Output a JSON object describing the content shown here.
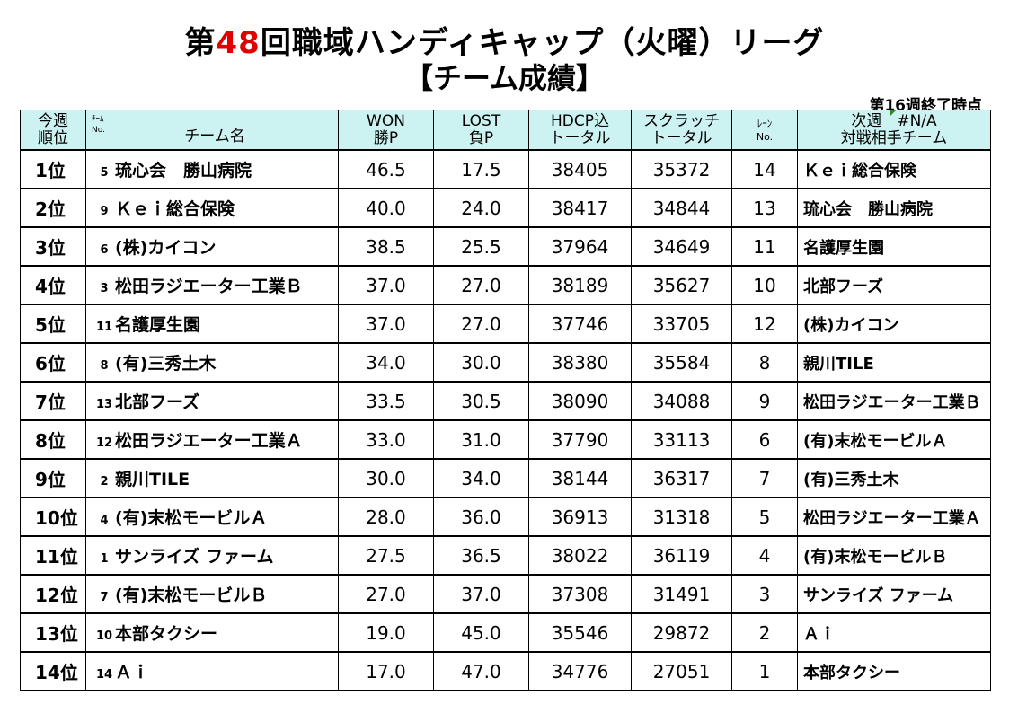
{
  "title": {
    "prefix": "第",
    "number": "48",
    "suffix": "回職域ハンディキャップ（火曜）リーグ"
  },
  "subtitle": "【チーム成績】",
  "as_of": "第16週終了時点",
  "headers": {
    "rank": [
      "今週",
      "順位"
    ],
    "team_no": [
      "ﾁｰﾑ",
      "No."
    ],
    "team_name": "チーム名",
    "won": [
      "WON",
      "勝P"
    ],
    "lost": [
      "LOST",
      "負P"
    ],
    "hdcp": [
      "HDCP込",
      "トータル"
    ],
    "scratch": [
      "スクラッチ",
      "トータル"
    ],
    "lane": [
      "ﾚｰﾝ",
      "No."
    ],
    "next": [
      "次週",
      "#N/A",
      "対戦相手チーム"
    ]
  },
  "rows": [
    {
      "rank": "1位",
      "no": "5",
      "team": "琉心会　勝山病院",
      "won": "46.5",
      "lost": "17.5",
      "hdcp": "38405",
      "scratch": "35372",
      "lane": "14",
      "opponent": "Ｋｅｉ総合保険"
    },
    {
      "rank": "2位",
      "no": "9",
      "team": "Ｋｅｉ総合保険",
      "won": "40.0",
      "lost": "24.0",
      "hdcp": "38417",
      "scratch": "34844",
      "lane": "13",
      "opponent": "琉心会　勝山病院"
    },
    {
      "rank": "3位",
      "no": "6",
      "team": "(株)カイコン",
      "won": "38.5",
      "lost": "25.5",
      "hdcp": "37964",
      "scratch": "34649",
      "lane": "11",
      "opponent": "名護厚生園"
    },
    {
      "rank": "4位",
      "no": "3",
      "team": "松田ラジエーター工業Ｂ",
      "won": "37.0",
      "lost": "27.0",
      "hdcp": "38189",
      "scratch": "35627",
      "lane": "10",
      "opponent": "北部フーズ"
    },
    {
      "rank": "5位",
      "no": "11",
      "team": "名護厚生園",
      "won": "37.0",
      "lost": "27.0",
      "hdcp": "37746",
      "scratch": "33705",
      "lane": "12",
      "opponent": "(株)カイコン"
    },
    {
      "rank": "6位",
      "no": "8",
      "team": "(有)三秀土木",
      "won": "34.0",
      "lost": "30.0",
      "hdcp": "38380",
      "scratch": "35584",
      "lane": "8",
      "opponent": "親川TILE"
    },
    {
      "rank": "7位",
      "no": "13",
      "team": "北部フーズ",
      "won": "33.5",
      "lost": "30.5",
      "hdcp": "38090",
      "scratch": "34088",
      "lane": "9",
      "opponent": "松田ラジエーター工業Ｂ"
    },
    {
      "rank": "8位",
      "no": "12",
      "team": "松田ラジエーター工業Ａ",
      "won": "33.0",
      "lost": "31.0",
      "hdcp": "37790",
      "scratch": "33113",
      "lane": "6",
      "opponent": "(有)末松モービルＡ"
    },
    {
      "rank": "9位",
      "no": "2",
      "team": "親川TILE",
      "won": "30.0",
      "lost": "34.0",
      "hdcp": "38144",
      "scratch": "36317",
      "lane": "7",
      "opponent": "(有)三秀土木"
    },
    {
      "rank": "10位",
      "no": "4",
      "team": "(有)末松モービルＡ",
      "won": "28.0",
      "lost": "36.0",
      "hdcp": "36913",
      "scratch": "31318",
      "lane": "5",
      "opponent": "松田ラジエーター工業Ａ"
    },
    {
      "rank": "11位",
      "no": "1",
      "team": "サンライズ ファーム",
      "won": "27.5",
      "lost": "36.5",
      "hdcp": "38022",
      "scratch": "36119",
      "lane": "4",
      "opponent": "(有)末松モービルＢ"
    },
    {
      "rank": "12位",
      "no": "7",
      "team": "(有)末松モービルＢ",
      "won": "27.0",
      "lost": "37.0",
      "hdcp": "37308",
      "scratch": "31491",
      "lane": "3",
      "opponent": "サンライズ ファーム"
    },
    {
      "rank": "13位",
      "no": "10",
      "team": "本部タクシー",
      "won": "19.0",
      "lost": "45.0",
      "hdcp": "35546",
      "scratch": "29872",
      "lane": "2",
      "opponent": "Ａｉ"
    },
    {
      "rank": "14位",
      "no": "14",
      "team": "Ａｉ",
      "won": "17.0",
      "lost": "47.0",
      "hdcp": "34776",
      "scratch": "27051",
      "lane": "1",
      "opponent": "本部タクシー"
    }
  ]
}
